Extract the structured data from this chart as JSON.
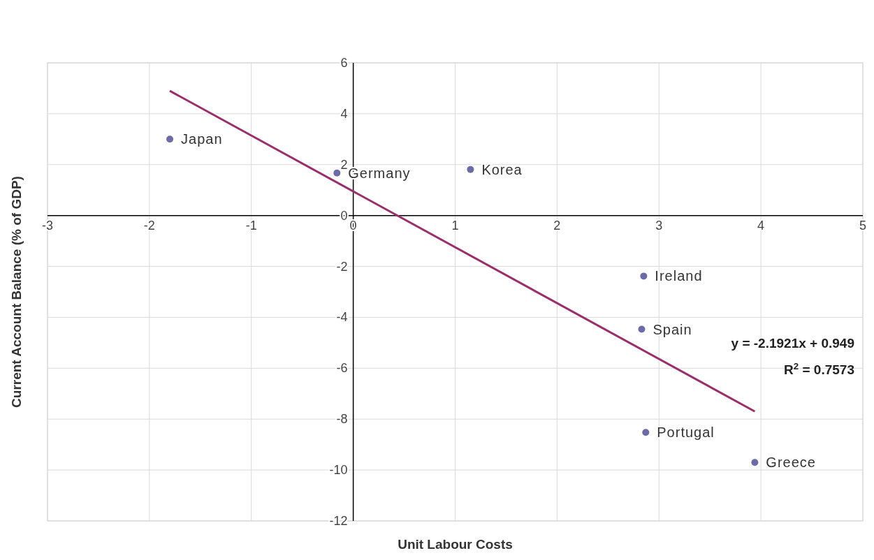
{
  "chart_data": {
    "type": "scatter",
    "xlabel": "Unit Labour Costs",
    "ylabel": "Current Account Balance (% of GDP)",
    "xlim": [
      -3,
      5
    ],
    "xticks": [
      -3,
      -2,
      -1,
      0,
      1,
      2,
      3,
      4,
      5
    ],
    "ylim": [
      -12,
      6
    ],
    "yticks": [
      -12,
      -10,
      -8,
      -6,
      -4,
      -2,
      0,
      2,
      4,
      6
    ],
    "grid": true,
    "marker": "circle",
    "series": [
      {
        "color": "#6b6ba8",
        "x": [
          -1.8,
          -0.16,
          1.15,
          2.85,
          2.83,
          2.87,
          3.94
        ],
        "values": [
          3.0,
          1.67,
          1.81,
          -2.38,
          -4.47,
          -8.52,
          -9.7
        ]
      },
      {
        "type": "line",
        "marker": "none",
        "color": "#9b2d6b",
        "x": [
          -1.8,
          3.94
        ],
        "values": [
          4.9,
          -7.7
        ]
      }
    ],
    "annotations": [
      {
        "text": "Japan",
        "x": -1.8,
        "y": 3.0
      },
      {
        "text": "Germany",
        "x": -0.16,
        "y": 1.67
      },
      {
        "text": "Korea",
        "x": 1.15,
        "y": 1.81
      },
      {
        "text": "Ireland",
        "x": 2.85,
        "y": -2.38
      },
      {
        "text": "Spain",
        "x": 2.83,
        "y": -4.47
      },
      {
        "text": "Portugal",
        "x": 2.87,
        "y": -8.52
      },
      {
        "text": "Greece",
        "x": 3.94,
        "y": -9.7
      },
      "y = -2.1921x + 0.949",
      "R$^{2}$ = 0.7573"
    ]
  }
}
